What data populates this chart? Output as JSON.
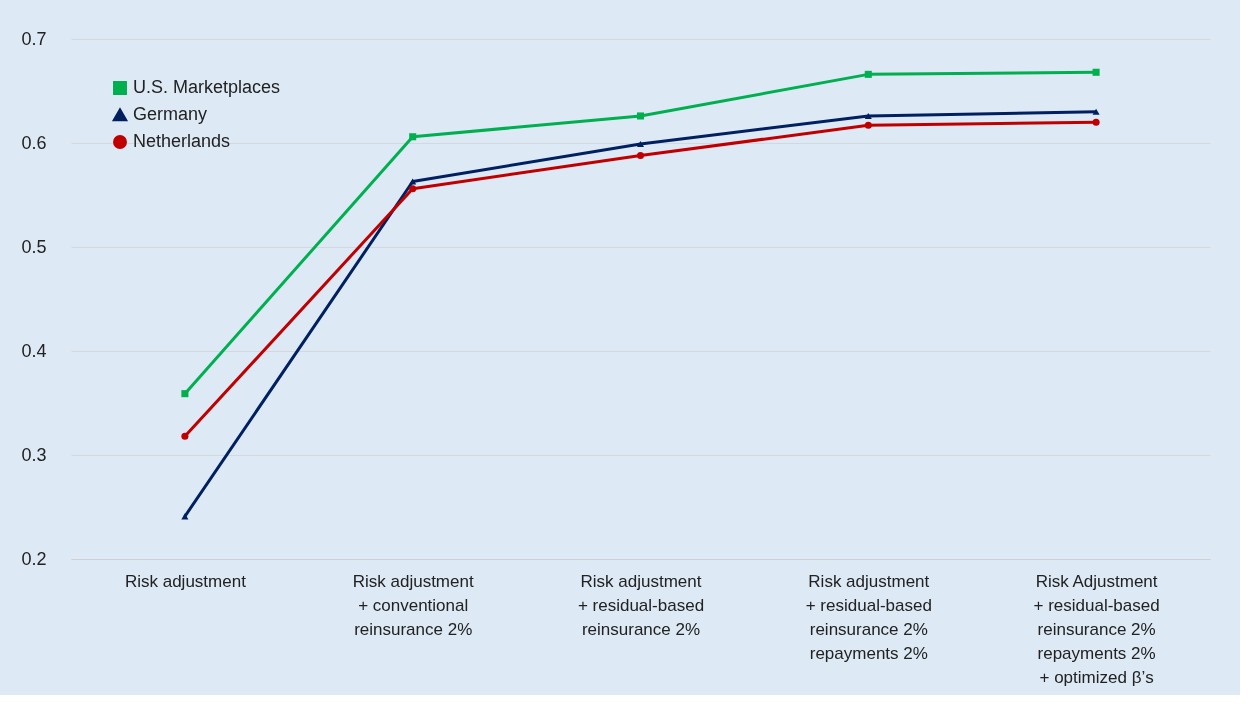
{
  "chart_data": {
    "type": "line",
    "categories": [
      "Risk adjustment",
      "Risk adjustment\n+ conventional\nreinsurance 2%",
      "Risk adjustment\n+ residual-based\nreinsurance 2%",
      "Risk adjustment\n+ residual-based\nreinsurance 2%\nrepayments 2%",
      "Risk Adjustment\n+ residual-based\nreinsurance 2%\nrepayments 2%\n+ optimized β’s"
    ],
    "series": [
      {
        "name": "U.S. Marketplaces",
        "color": "#00b050",
        "marker": "square",
        "values": [
          0.359,
          0.606,
          0.626,
          0.666,
          0.668
        ]
      },
      {
        "name": "Germany",
        "color": "#002060",
        "marker": "triangle",
        "values": [
          0.241,
          0.563,
          0.599,
          0.626,
          0.63
        ]
      },
      {
        "name": "Netherlands",
        "color": "#c00000",
        "marker": "circle",
        "values": [
          0.318,
          0.556,
          0.588,
          0.617,
          0.62
        ]
      }
    ],
    "ylim": [
      0.2,
      0.7
    ],
    "yticks": [
      0.2,
      0.3,
      0.4,
      0.5,
      0.6,
      0.7
    ],
    "grid": "y",
    "legend": "top left",
    "line_style": "solid"
  }
}
